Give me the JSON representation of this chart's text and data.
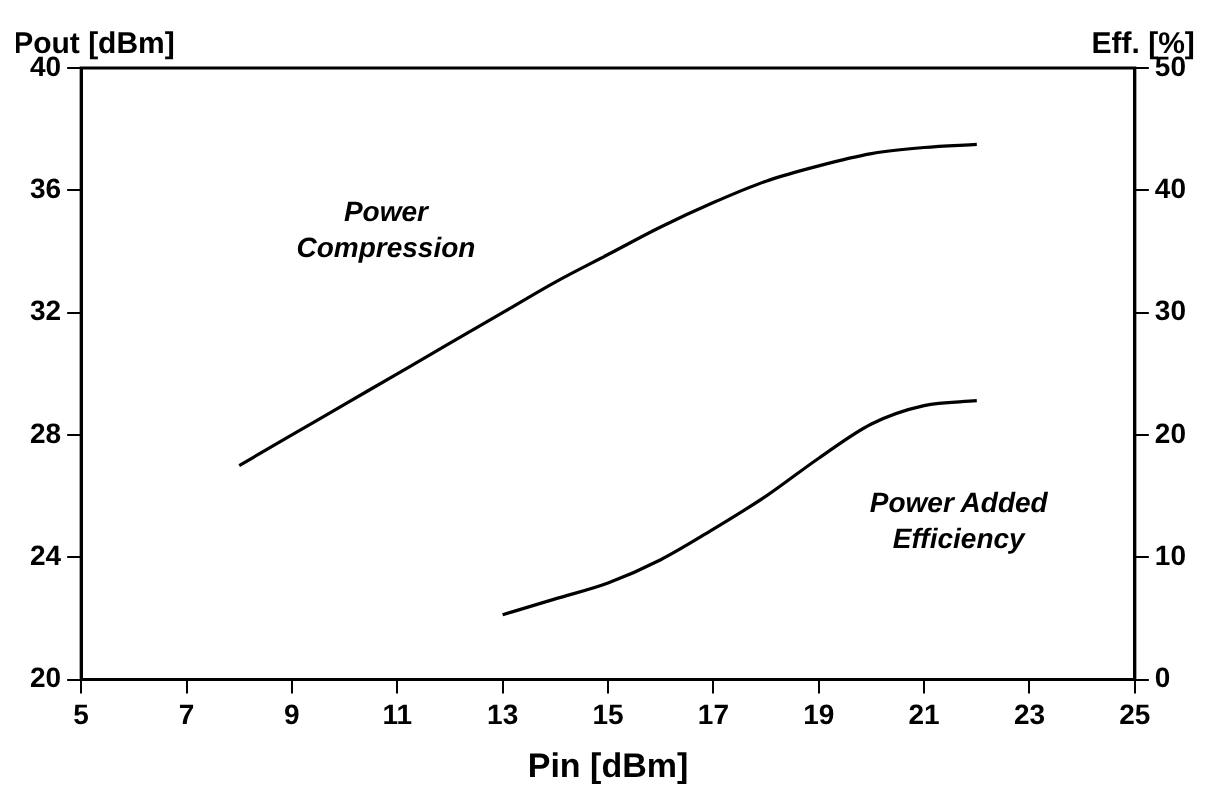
{
  "chart_data": {
    "type": "line",
    "xlabel": "Pin [dBm]",
    "ylabel": "Pout [dBm]",
    "y2label": "Eff. [%]",
    "xlim": [
      5,
      25
    ],
    "xticks": [
      5,
      7,
      9,
      11,
      13,
      15,
      17,
      19,
      21,
      23,
      25
    ],
    "ylim": [
      20,
      40
    ],
    "yticks": [
      20,
      24,
      28,
      32,
      36,
      40
    ],
    "y2lim": [
      0,
      50
    ],
    "y2ticks": [
      0,
      10,
      20,
      30,
      40,
      50
    ],
    "grid": false,
    "legend": false,
    "series": [
      {
        "name": "Power Compression",
        "color": "#000000",
        "x": [
          8,
          9,
          10,
          11,
          12,
          13,
          14,
          15,
          16,
          17,
          18,
          19,
          20,
          21,
          22
        ],
        "values": [
          27,
          28,
          29,
          30,
          31,
          32,
          33,
          33.9,
          34.8,
          35.6,
          36.3,
          36.8,
          37.2,
          37.4,
          37.5
        ]
      },
      {
        "name": "Power Added Efficiency",
        "color": "#000000",
        "axis": "y2",
        "x": [
          13,
          14,
          15,
          16,
          17,
          18,
          19,
          20,
          21,
          22
        ],
        "values": [
          5.3,
          6.6,
          7.9,
          9.8,
          12.3,
          15,
          18.1,
          20.9,
          22.4,
          22.8
        ]
      }
    ]
  }
}
